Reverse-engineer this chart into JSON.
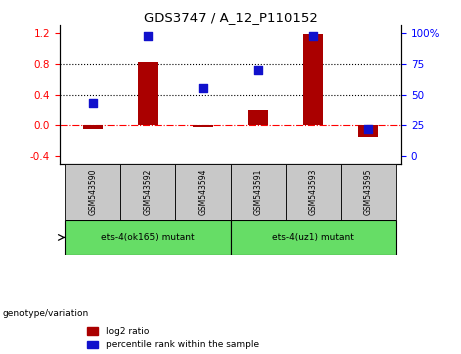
{
  "title": "GDS3747 / A_12_P110152",
  "categories": [
    "GSM543590",
    "GSM543592",
    "GSM543594",
    "GSM543591",
    "GSM543593",
    "GSM543595"
  ],
  "log2_ratio": [
    -0.04,
    0.82,
    -0.02,
    0.2,
    1.18,
    -0.15
  ],
  "percentile_rank": [
    43,
    97,
    55,
    70,
    97,
    22
  ],
  "ylim_left": [
    -0.5,
    1.3
  ],
  "ylim_right": [
    -10.4,
    125
  ],
  "yticks_left": [
    -0.4,
    0.0,
    0.4,
    0.8,
    1.2
  ],
  "yticks_right": [
    0,
    25,
    50,
    75,
    100
  ],
  "hlines_dotted": [
    0.4,
    0.8
  ],
  "hline_dashdot": 0.0,
  "bar_color": "#AA0000",
  "dot_color": "#1111CC",
  "group1_label": "ets-4(ok165) mutant",
  "group2_label": "ets-4(uz1) mutant",
  "group1_indices": [
    0,
    1,
    2
  ],
  "group2_indices": [
    3,
    4,
    5
  ],
  "group_color": "#66DD66",
  "sample_box_color": "#C8C8C8",
  "legend_bar_label": "log2 ratio",
  "legend_dot_label": "percentile rank within the sample",
  "bar_width": 0.35,
  "genotype_label": "genotype/variation",
  "dot_size": 28
}
